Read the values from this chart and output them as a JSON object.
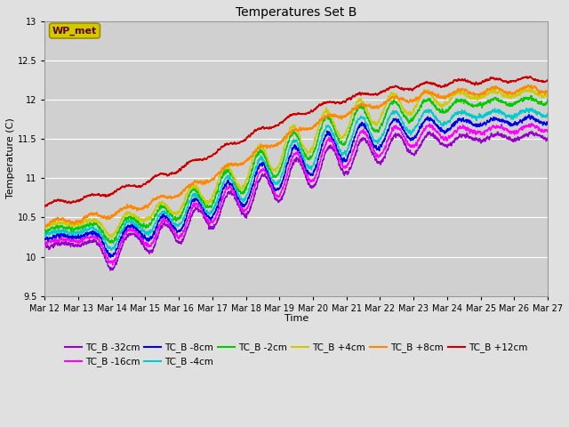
{
  "title": "Temperatures Set B",
  "xlabel": "Time",
  "ylabel": "Temperature (C)",
  "ylim": [
    9.5,
    13.0
  ],
  "yticks": [
    9.5,
    10.0,
    10.5,
    11.0,
    11.5,
    12.0,
    12.5,
    13.0
  ],
  "xtick_labels": [
    "Mar 12",
    "Mar 13",
    "Mar 14",
    "Mar 15",
    "Mar 16",
    "Mar 17",
    "Mar 18",
    "Mar 19",
    "Mar 20",
    "Mar 21",
    "Mar 22",
    "Mar 23",
    "Mar 24",
    "Mar 25",
    "Mar 26",
    "Mar 27"
  ],
  "series": [
    {
      "label": "TC_B -32cm",
      "color": "#9900cc"
    },
    {
      "label": "TC_B -16cm",
      "color": "#ff00ff"
    },
    {
      "label": "TC_B -8cm",
      "color": "#0000ee"
    },
    {
      "label": "TC_B -4cm",
      "color": "#00cccc"
    },
    {
      "label": "TC_B -2cm",
      "color": "#00cc00"
    },
    {
      "label": "TC_B +4cm",
      "color": "#cccc00"
    },
    {
      "label": "TC_B +8cm",
      "color": "#ff8800"
    },
    {
      "label": "TC_B +12cm",
      "color": "#cc0000"
    }
  ],
  "wp_met_box_color": "#cccc00",
  "wp_met_text_color": "#660000",
  "background_color": "#e0e0e0",
  "plot_bg_color": "#d0d0d0",
  "grid_color": "#ffffff",
  "n_points": 4000,
  "days": 15
}
